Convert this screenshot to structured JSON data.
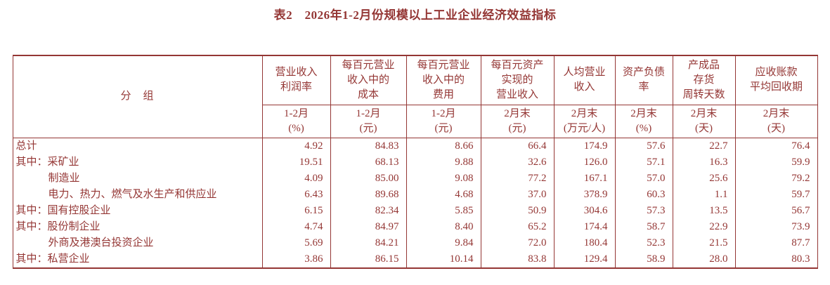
{
  "title": "表2　2026年1-2月份规模以上工业企业经济效益指标",
  "colors": {
    "text": "#943634",
    "border": "#943634",
    "background": "#ffffff"
  },
  "table": {
    "group_header": "分　组",
    "columns": [
      {
        "name_lines": [
          "营业收入",
          "利润率"
        ],
        "period": "1-2月",
        "unit": "(%)"
      },
      {
        "name_lines": [
          "每百元营业",
          "收入中的",
          "成本"
        ],
        "period": "1-2月",
        "unit": "(元)"
      },
      {
        "name_lines": [
          "每百元营业",
          "收入中的",
          "费用"
        ],
        "period": "1-2月",
        "unit": "(元)"
      },
      {
        "name_lines": [
          "每百元资产",
          "实现的",
          "营业收入"
        ],
        "period": "2月末",
        "unit": "(元)"
      },
      {
        "name_lines": [
          "人均营业",
          "收入"
        ],
        "period": "2月末",
        "unit": "(万元/人)"
      },
      {
        "name_lines": [
          "资产负债",
          "率"
        ],
        "period": "2月末",
        "unit": "(%)"
      },
      {
        "name_lines": [
          "产成品",
          "存货",
          "周转天数"
        ],
        "period": "2月末",
        "unit": "(天)"
      },
      {
        "name_lines": [
          "应收账款",
          "平均回收期"
        ],
        "period": "2月末",
        "unit": "(天)"
      }
    ],
    "rows": [
      {
        "label": "总计",
        "indent": 0,
        "values": [
          "4.92",
          "84.83",
          "8.66",
          "66.4",
          "174.9",
          "57.6",
          "22.7",
          "76.4"
        ]
      },
      {
        "label": "其中：采矿业",
        "indent": 0,
        "values": [
          "19.51",
          "68.13",
          "9.88",
          "32.6",
          "126.0",
          "57.1",
          "16.3",
          "59.9"
        ]
      },
      {
        "label": "制造业",
        "indent": 1,
        "values": [
          "4.09",
          "85.00",
          "9.08",
          "77.2",
          "167.1",
          "57.0",
          "25.6",
          "79.2"
        ]
      },
      {
        "label": "电力、热力、燃气及水生产和供应业",
        "indent": 1,
        "values": [
          "6.43",
          "89.68",
          "4.68",
          "37.0",
          "378.9",
          "60.3",
          "1.1",
          "59.7"
        ]
      },
      {
        "label": "其中：国有控股企业",
        "indent": 0,
        "values": [
          "6.15",
          "82.34",
          "5.85",
          "50.9",
          "304.6",
          "57.3",
          "13.5",
          "56.7"
        ]
      },
      {
        "label": "其中：股份制企业",
        "indent": 0,
        "values": [
          "4.74",
          "84.97",
          "8.40",
          "65.2",
          "174.4",
          "58.7",
          "22.9",
          "73.9"
        ]
      },
      {
        "label": "外商及港澳台投资企业",
        "indent": 1,
        "values": [
          "5.69",
          "84.21",
          "9.84",
          "72.0",
          "180.4",
          "52.3",
          "21.5",
          "87.7"
        ]
      },
      {
        "label": "其中：私营企业",
        "indent": 0,
        "values": [
          "3.86",
          "86.15",
          "10.14",
          "83.8",
          "129.4",
          "58.9",
          "28.0",
          "80.3"
        ]
      }
    ]
  }
}
